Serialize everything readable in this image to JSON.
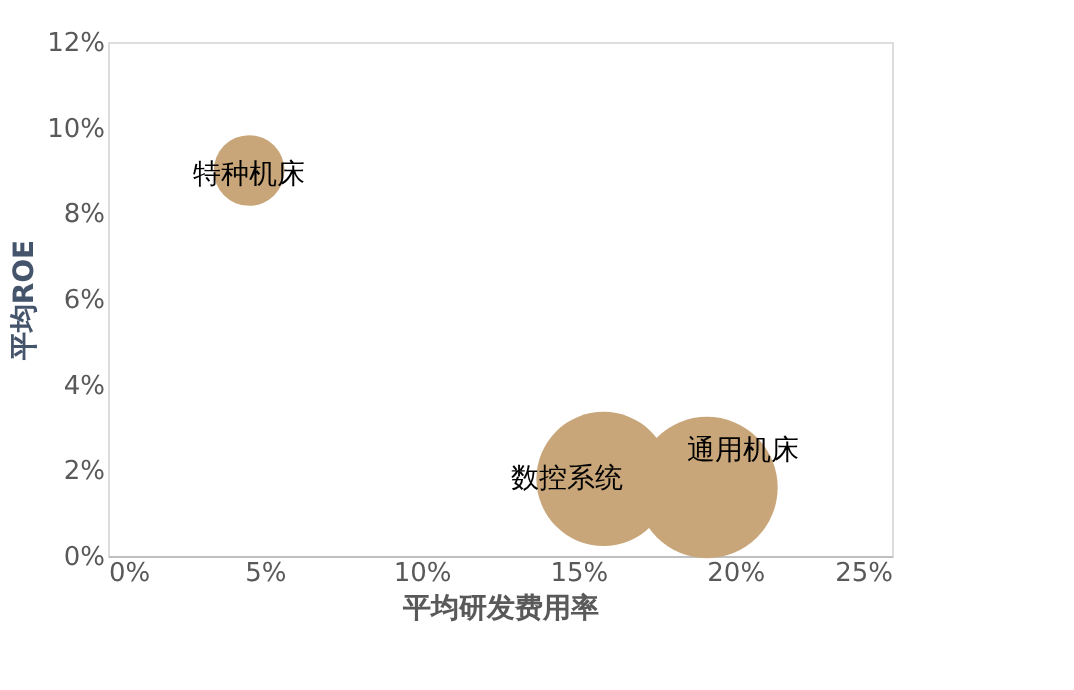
{
  "chart_data": {
    "type": "bubble",
    "xlabel": "平均研发费用率",
    "ylabel": "平均ROE",
    "x": [
      4.5,
      15.8,
      19.1
    ],
    "series": [
      {
        "color": "#c8a679",
        "values": [
          9.0,
          1.8,
          1.6
        ],
        "sizes": [
          0.25,
          0.9,
          1
        ]
      }
    ],
    "annotations": [
      {
        "text": "特种机床",
        "x": 4.5,
        "y": 9.0
      },
      {
        "text": "数控系统",
        "x": 15.8,
        "y": 1.8
      },
      {
        "text": "通用机床",
        "x": 19.1,
        "y": 1.6
      }
    ],
    "xlim": [
      0,
      25
    ],
    "xticks": [
      {
        "value": 0,
        "label": "0%"
      },
      {
        "value": 5,
        "label": "5%"
      },
      {
        "value": 10,
        "label": "10%"
      },
      {
        "value": 15,
        "label": "15%"
      },
      {
        "value": 20,
        "label": "20%"
      },
      {
        "value": 25,
        "label": "25%"
      }
    ],
    "ylim": [
      0,
      12
    ],
    "yticks": [
      {
        "value": 0,
        "label": "0%"
      },
      {
        "value": 2,
        "label": "2%"
      },
      {
        "value": 4,
        "label": "4%"
      },
      {
        "value": 6,
        "label": "6%"
      },
      {
        "value": 8,
        "label": "8%"
      },
      {
        "value": 10,
        "label": "10%"
      },
      {
        "value": 12,
        "label": "12%"
      }
    ],
    "grid": false
  }
}
